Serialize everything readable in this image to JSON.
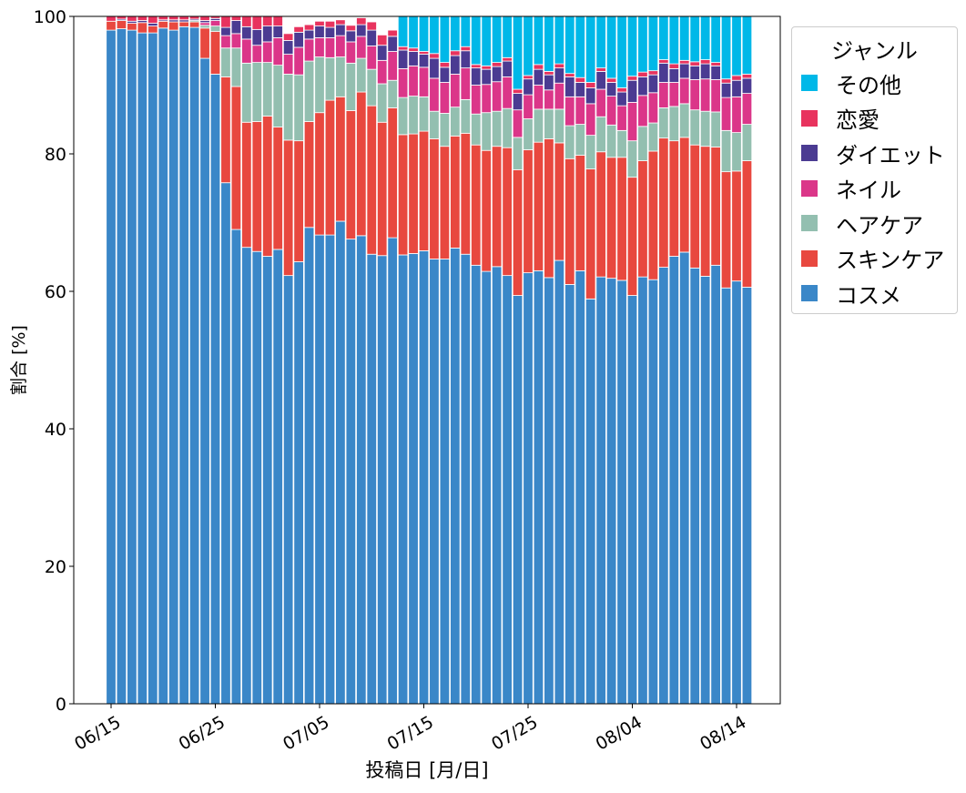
{
  "chart_data": {
    "type": "bar",
    "stacked": true,
    "title": "",
    "xlabel": "投稿日 [月/日]",
    "ylabel": "割合 [%]",
    "ylim": [
      0,
      100
    ],
    "yticks": [
      0,
      20,
      40,
      60,
      80,
      100
    ],
    "xticks": [
      "06/15",
      "06/25",
      "07/05",
      "07/15",
      "07/25",
      "08/04",
      "08/14"
    ],
    "grid": false,
    "legend": {
      "title": "ジャンル",
      "placement": "outside-upper-right"
    },
    "categories": [
      "06/15",
      "06/16",
      "06/17",
      "06/18",
      "06/19",
      "06/20",
      "06/21",
      "06/22",
      "06/23",
      "06/24",
      "06/25",
      "06/26",
      "06/27",
      "06/28",
      "06/29",
      "06/30",
      "07/01",
      "07/02",
      "07/03",
      "07/04",
      "07/05",
      "07/06",
      "07/07",
      "07/08",
      "07/09",
      "07/10",
      "07/11",
      "07/12",
      "07/13",
      "07/14",
      "07/15",
      "07/16",
      "07/17",
      "07/18",
      "07/19",
      "07/20",
      "07/21",
      "07/22",
      "07/23",
      "07/24",
      "07/25",
      "07/26",
      "07/27",
      "07/28",
      "07/29",
      "07/30",
      "07/31",
      "08/01",
      "08/02",
      "08/03",
      "08/04",
      "08/05",
      "08/06",
      "08/07",
      "08/08",
      "08/09",
      "08/10",
      "08/11",
      "08/12",
      "08/13",
      "08/14",
      "08/15"
    ],
    "series": [
      {
        "name": "コスメ",
        "color": "#3a87c8",
        "values": [
          98.0,
          98.2,
          98.0,
          97.6,
          97.6,
          98.3,
          98.0,
          98.5,
          98.4,
          93.9,
          91.6,
          75.8,
          69.0,
          66.4,
          65.8,
          65.1,
          66.1,
          62.3,
          64.3,
          69.3,
          68.2,
          68.2,
          70.2,
          67.6,
          68.1,
          65.4,
          65.2,
          67.8,
          65.3,
          65.5,
          65.9,
          64.7,
          64.7,
          66.3,
          65.4,
          63.8,
          62.9,
          63.6,
          62.3,
          59.4,
          62.7,
          63.0,
          62.0,
          64.5,
          61.0,
          63.0,
          58.9,
          62.1,
          61.9,
          61.6,
          59.4,
          62.1,
          61.7,
          63.5,
          65.1,
          65.7,
          63.4,
          62.2,
          63.8,
          60.5,
          61.5,
          60.6
        ]
      },
      {
        "name": "スキンケア",
        "color": "#e8483f",
        "values": [
          1.3,
          1.2,
          1.0,
          1.5,
          1.0,
          1.0,
          1.2,
          0.7,
          0.8,
          4.4,
          6.2,
          15.4,
          20.8,
          18.2,
          18.9,
          20.4,
          17.8,
          19.7,
          17.6,
          15.4,
          17.8,
          19.6,
          18.1,
          18.7,
          20.9,
          21.6,
          19.4,
          18.9,
          17.5,
          17.4,
          17.4,
          17.5,
          16.4,
          16.3,
          17.6,
          17.5,
          17.6,
          17.5,
          18.6,
          18.3,
          17.9,
          18.7,
          20.2,
          17.1,
          18.3,
          16.8,
          18.9,
          18.2,
          17.6,
          17.9,
          17.2,
          16.9,
          18.7,
          18.8,
          16.8,
          16.7,
          17.9,
          18.9,
          17.2,
          16.9,
          16.0,
          18.4
        ]
      },
      {
        "name": "ヘアケア",
        "color": "#93bfb0",
        "values": [
          0,
          0,
          0,
          0,
          0,
          0,
          0,
          0,
          0.2,
          0.4,
          0.8,
          4.2,
          5.6,
          8.6,
          8.6,
          7.8,
          9.0,
          9.6,
          9.6,
          8.8,
          8.1,
          6.2,
          5.8,
          6.9,
          4.9,
          5.3,
          5.6,
          4.0,
          5.4,
          5.5,
          5.0,
          4.0,
          4.8,
          4.2,
          4.9,
          4.5,
          5.5,
          5.1,
          5.7,
          4.7,
          4.5,
          4.8,
          4.3,
          4.9,
          4.8,
          4.5,
          4.9,
          5.1,
          4.7,
          3.9,
          5.3,
          5.0,
          4.1,
          4.4,
          5.0,
          4.9,
          5.1,
          5.1,
          5.1,
          6.0,
          5.6,
          5.3
        ]
      },
      {
        "name": "ネイル",
        "color": "#db3689",
        "values": [
          0,
          0,
          0,
          0,
          0,
          0,
          0,
          0,
          0,
          0.4,
          0.8,
          1.8,
          2.1,
          3.5,
          2.5,
          3.0,
          4.0,
          2.9,
          4.0,
          3.2,
          2.8,
          2.9,
          3.1,
          3.1,
          3.2,
          3.4,
          3.4,
          4.2,
          4.2,
          4.4,
          4.3,
          4.8,
          4.5,
          4.8,
          4.6,
          4.2,
          4.1,
          4.3,
          4.6,
          4.0,
          3.5,
          3.5,
          2.8,
          3.8,
          4.2,
          4.0,
          4.6,
          4.0,
          4.2,
          3.6,
          5.6,
          4.5,
          4.4,
          3.7,
          3.5,
          3.7,
          4.4,
          4.7,
          4.7,
          4.8,
          5.2,
          4.5
        ]
      },
      {
        "name": "ダイエット",
        "color": "#4b3b92",
        "values": [
          0,
          0.2,
          0.3,
          0.3,
          0.4,
          0.2,
          0.3,
          0.3,
          0.2,
          0.3,
          0.3,
          1.2,
          1.9,
          1.8,
          2.3,
          2.3,
          1.7,
          2.0,
          2.2,
          1.3,
          1.7,
          1.5,
          1.6,
          1.6,
          1.7,
          2.3,
          2.2,
          2.2,
          2.7,
          2.1,
          1.9,
          2.9,
          2.2,
          2.7,
          2.5,
          2.5,
          2.2,
          2.2,
          2.3,
          2.4,
          2.3,
          2.3,
          2.2,
          2.2,
          2.9,
          2.1,
          2.3,
          2.6,
          2.0,
          2.0,
          3.2,
          2.7,
          2.6,
          2.8,
          2.0,
          2.1,
          2.0,
          2.2,
          2.0,
          2.1,
          2.4,
          2.2
        ]
      },
      {
        "name": "恋愛",
        "color": "#e8335e",
        "values": [
          0.7,
          0.4,
          0.7,
          0.6,
          1.0,
          0.5,
          0.5,
          0.5,
          0.4,
          0.6,
          0.3,
          1.6,
          0.6,
          1.5,
          1.9,
          1.4,
          1.4,
          1.0,
          0.8,
          0.8,
          0.7,
          0.9,
          0.7,
          0.8,
          1.0,
          1.2,
          1.5,
          0.9,
          0.5,
          0.5,
          0.4,
          0.7,
          0.7,
          0.7,
          0.6,
          0.5,
          0.5,
          0.6,
          0.5,
          0.6,
          0.5,
          0.7,
          0.5,
          0.6,
          0.5,
          0.7,
          0.8,
          0.5,
          0.6,
          0.6,
          0.6,
          0.7,
          0.6,
          0.5,
          0.7,
          0.5,
          0.6,
          0.6,
          0.5,
          0.6,
          0.7,
          0.6
        ]
      },
      {
        "name": "その他",
        "color": "#00b8e8",
        "values": [
          0,
          0,
          0,
          0,
          0,
          0,
          0,
          0,
          0,
          0,
          0,
          0,
          0,
          0,
          0,
          0,
          0,
          0,
          0,
          0,
          0,
          0,
          0,
          0,
          0,
          0,
          0,
          0,
          4.4,
          4.6,
          5.1,
          5.4,
          6.7,
          5.0,
          4.4,
          7.0,
          7.2,
          6.7,
          6.0,
          10.6,
          8.6,
          7.0,
          8.0,
          6.9,
          8.3,
          8.9,
          9.6,
          7.5,
          9.0,
          10.4,
          8.7,
          8.1,
          7.9,
          6.3,
          6.9,
          6.4,
          6.6,
          6.3,
          6.7,
          9.1,
          8.6,
          8.4
        ]
      }
    ]
  }
}
